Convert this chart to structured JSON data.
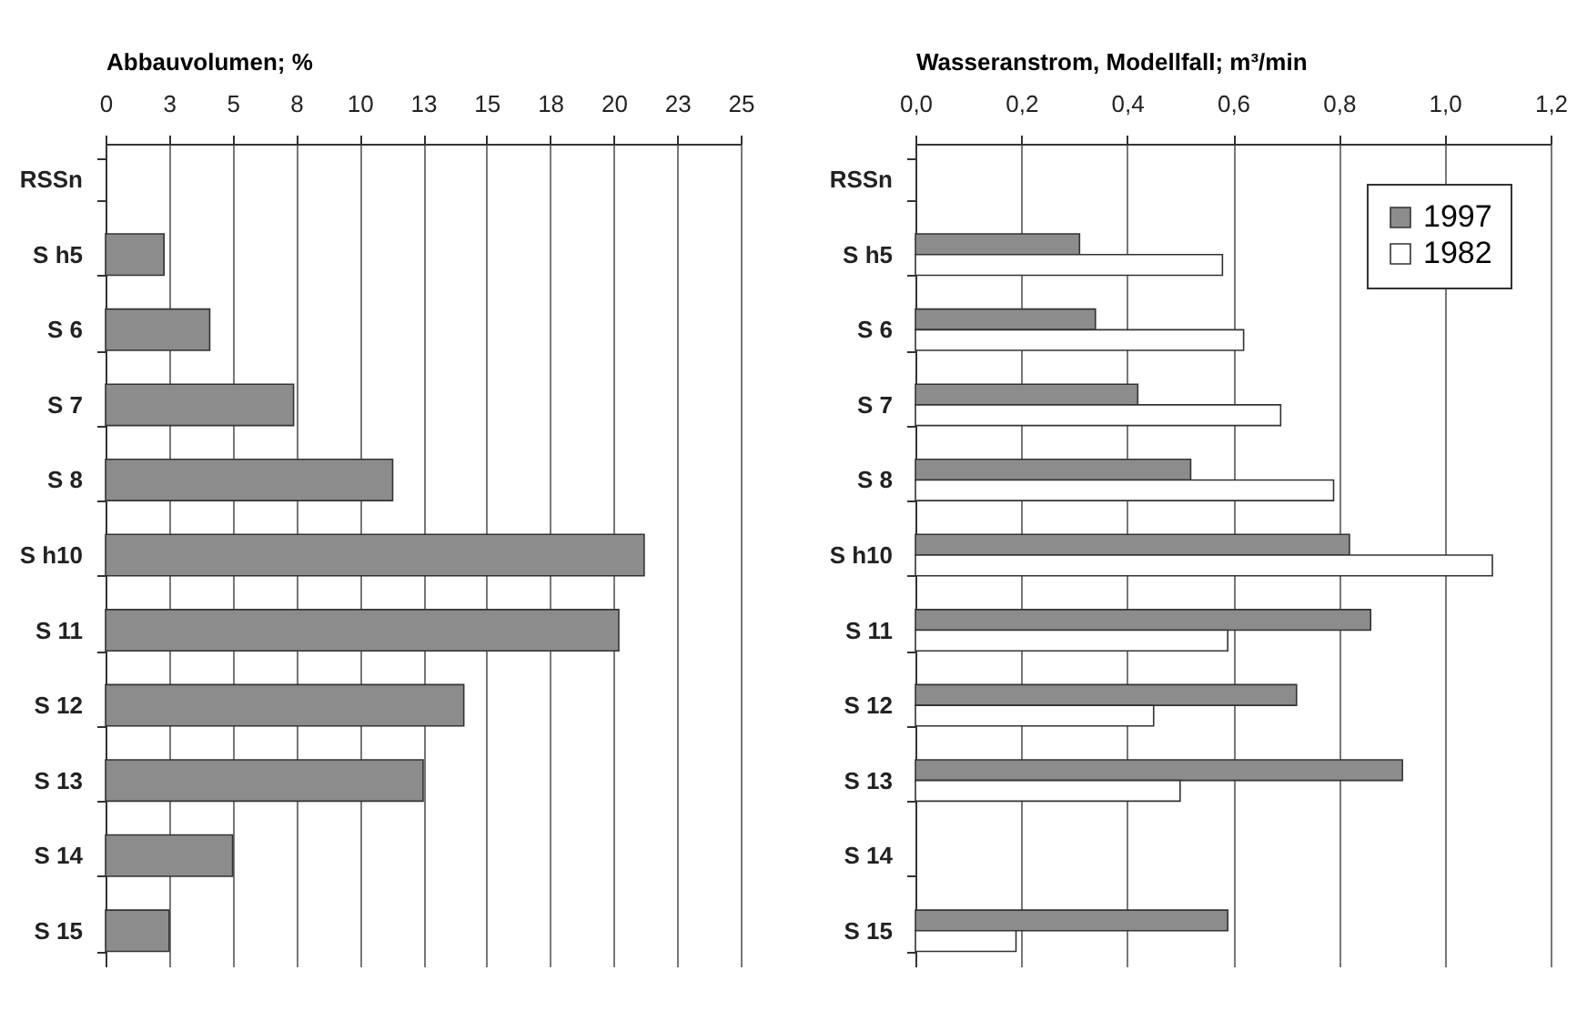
{
  "chart_data": [
    {
      "type": "bar",
      "orientation": "horizontal",
      "xlabel": "Abbauvolumen; %",
      "categories": [
        "RSSn",
        "S h5",
        "S 6",
        "S 7",
        "S 8",
        "S h10",
        "S 11",
        "S 12",
        "S 13",
        "S 14",
        "S 15"
      ],
      "values": [
        null,
        2.3,
        4.1,
        7.4,
        11.3,
        21.2,
        20.2,
        14.1,
        12.5,
        5.0,
        2.5
      ],
      "color": "#8c8c8c",
      "xlim": [
        0,
        25
      ],
      "xticks": [
        0,
        {
          "value": 2.5,
          "label": "3"
        },
        5,
        {
          "value": 7.5,
          "label": "8"
        },
        10,
        {
          "value": 12.5,
          "label": "13"
        },
        15,
        {
          "value": 17.5,
          "label": "18"
        },
        20,
        {
          "value": 22.5,
          "label": "23"
        },
        25
      ],
      "grid": "x"
    },
    {
      "type": "bar",
      "orientation": "horizontal",
      "xlabel": "Wasseranstrom, Modellfall; m³/min",
      "categories": [
        "RSSn",
        "S h5",
        "S 6",
        "S 7",
        "S 8",
        "S h10",
        "S 11",
        "S 12",
        "S 13",
        "S 14",
        "S 15"
      ],
      "series": [
        {
          "name": "1997",
          "color": "#8c8c8c",
          "values": [
            null,
            0.31,
            0.34,
            0.42,
            0.52,
            0.82,
            0.86,
            0.72,
            0.92,
            null,
            0.59
          ]
        },
        {
          "name": "1982",
          "color": "#ffffff",
          "values": [
            null,
            0.58,
            0.62,
            0.69,
            0.79,
            1.09,
            0.59,
            0.45,
            0.5,
            null,
            0.19
          ]
        }
      ],
      "xlim": [
        0,
        1.2
      ],
      "xticks": [
        {
          "value": 0,
          "label": "0,0"
        },
        {
          "value": 0.2,
          "label": "0,2"
        },
        {
          "value": 0.4,
          "label": "0,4"
        },
        {
          "value": 0.6,
          "label": "0,6"
        },
        {
          "value": 0.8,
          "label": "0,8"
        },
        {
          "value": 1.0,
          "label": "1,0"
        },
        {
          "value": 1.2,
          "label": "1,2"
        }
      ],
      "grid": "x",
      "legend": "top right"
    }
  ]
}
